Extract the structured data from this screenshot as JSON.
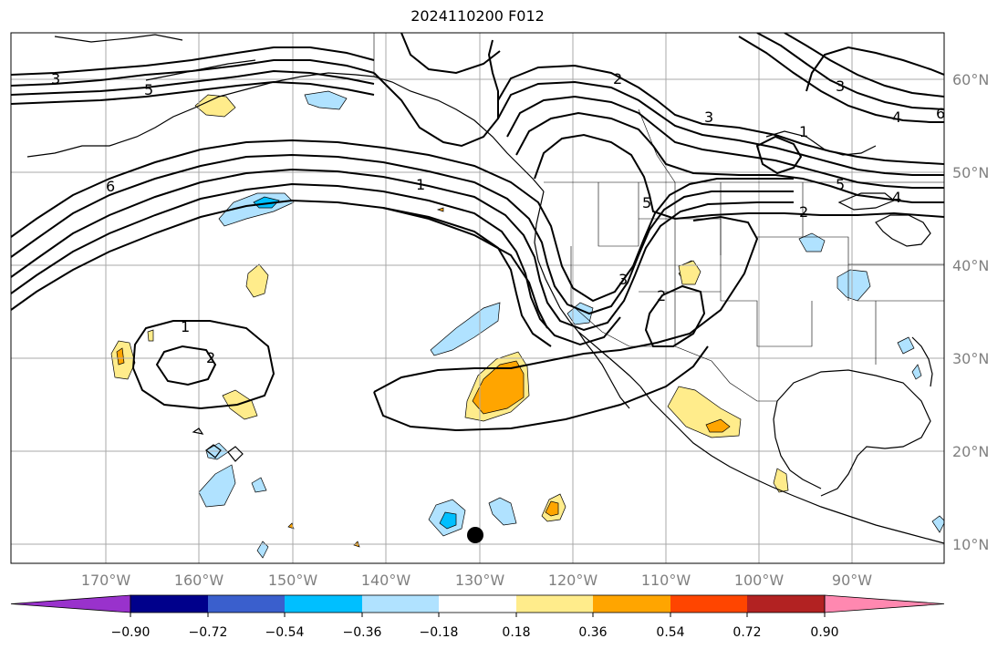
{
  "title": "2024110200 F012",
  "lat_labels": [
    "60°N",
    "50°N",
    "40°N",
    "30°N",
    "20°N",
    "10°N"
  ],
  "lon_labels": [
    "170°W",
    "160°W",
    "150°W",
    "140°W",
    "130°W",
    "120°W",
    "110°W",
    "100°W",
    "90°W"
  ],
  "colorbar": {
    "colors": [
      "#9932cc",
      "#00008b",
      "#3a5fcd",
      "#00bfff",
      "#b0e2ff",
      "#ffffff",
      "#ffec8b",
      "#ffa500",
      "#ff4500",
      "#b22222",
      "#ff88b0"
    ],
    "labels": [
      "−0.90",
      "−0.72",
      "−0.54",
      "−0.36",
      "−0.18",
      "0.18",
      "0.36",
      "0.54",
      "0.72",
      "0.90"
    ]
  },
  "contour_labels": [
    {
      "id": "c1",
      "text": "3"
    },
    {
      "id": "c2",
      "text": "5"
    },
    {
      "id": "c3",
      "text": "6"
    },
    {
      "id": "c4",
      "text": "1"
    },
    {
      "id": "c5",
      "text": "2"
    },
    {
      "id": "c6",
      "text": "3"
    },
    {
      "id": "c7",
      "text": "1"
    },
    {
      "id": "c8",
      "text": "4"
    },
    {
      "id": "c9",
      "text": "5"
    },
    {
      "id": "c10",
      "text": "2"
    },
    {
      "id": "c11",
      "text": "4"
    },
    {
      "id": "c12",
      "text": "6"
    },
    {
      "id": "c13",
      "text": "1"
    },
    {
      "id": "c14",
      "text": "2"
    },
    {
      "id": "c15",
      "text": "2"
    },
    {
      "id": "c16",
      "text": "3"
    },
    {
      "id": "c17",
      "text": "5"
    },
    {
      "id": "c18",
      "text": "3"
    }
  ]
}
